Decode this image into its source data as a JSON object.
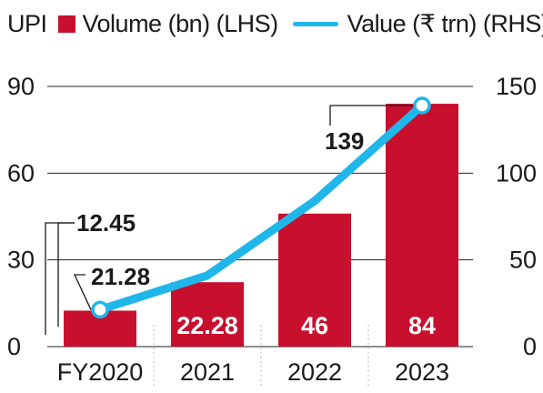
{
  "legend": {
    "title": "UPI",
    "bar_label": "Volume (bn) (LHS)",
    "line_label": "Value (₹ trn) (RHS)"
  },
  "colors": {
    "bar": "#c8102e",
    "line": "#1fb6ea",
    "grid": "#222222",
    "separator": "#bbbbbb"
  },
  "chart_data": {
    "type": "bar",
    "categories": [
      "FY2020",
      "2021",
      "2022",
      "2023"
    ],
    "series": [
      {
        "name": "Volume (bn) (LHS)",
        "type": "bar",
        "axis": "left",
        "values": [
          12.45,
          22.28,
          46,
          84
        ],
        "labels": [
          "12.45",
          "22.28",
          "46",
          "84"
        ]
      },
      {
        "name": "Value (₹ trn) (RHS)",
        "type": "line",
        "axis": "right",
        "values": [
          21.28,
          41,
          84,
          139
        ],
        "labels": [
          "21.28",
          "",
          "",
          "139"
        ]
      }
    ],
    "left_axis": {
      "ylim": [
        0,
        90
      ],
      "ticks": [
        "0",
        "30",
        "60",
        "90"
      ]
    },
    "right_axis": {
      "ylim": [
        0,
        150
      ],
      "ticks": [
        "0",
        "50",
        "100",
        "150"
      ]
    },
    "grid": true,
    "legend_position": "top"
  }
}
